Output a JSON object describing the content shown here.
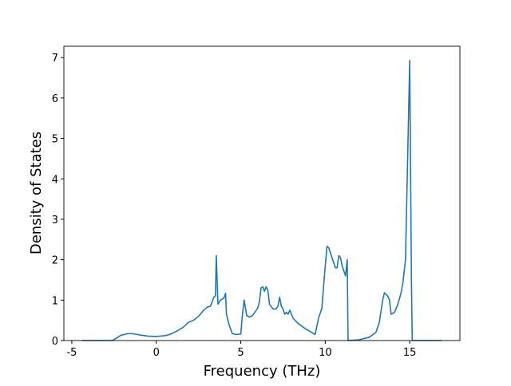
{
  "chart_data": {
    "type": "line",
    "x_label": "Frequency (THz)",
    "y_label": "Density of States",
    "x": [
      -4.4,
      -2.6,
      -2.4,
      -2.1,
      -1.7,
      -1.4,
      -1.0,
      -0.5,
      0,
      0.5,
      0.8,
      1.2,
      1.6,
      1.9,
      2.2,
      2.5,
      2.8,
      3.0,
      3.2,
      3.3,
      3.4,
      3.5,
      3.55,
      3.65,
      3.8,
      4.0,
      4.1,
      4.15,
      4.3,
      4.5,
      4.7,
      5.0,
      5.1,
      5.2,
      5.35,
      5.5,
      5.7,
      6.0,
      6.1,
      6.2,
      6.3,
      6.4,
      6.5,
      6.6,
      6.7,
      6.9,
      7.1,
      7.2,
      7.3,
      7.4,
      7.5,
      7.6,
      7.7,
      7.8,
      7.9,
      8.1,
      8.4,
      8.8,
      9.2,
      9.4,
      9.6,
      9.8,
      9.95,
      10.1,
      10.2,
      10.4,
      10.6,
      10.7,
      10.8,
      10.9,
      11.0,
      11.2,
      11.3,
      11.35,
      12.0,
      12.6,
      13.0,
      13.2,
      13.4,
      13.5,
      13.7,
      13.8,
      13.9,
      14.1,
      14.3,
      14.5,
      14.6,
      14.75,
      15.0,
      15.1,
      15.15,
      16.9
    ],
    "series": [
      {
        "color": "#1f77b4",
        "values": [
          0,
          0,
          0.05,
          0.13,
          0.17,
          0.17,
          0.14,
          0.11,
          0.1,
          0.12,
          0.15,
          0.23,
          0.33,
          0.45,
          0.5,
          0.6,
          0.75,
          0.82,
          0.85,
          0.95,
          1.07,
          1.1,
          2.1,
          0.9,
          1.0,
          1.05,
          1.17,
          0.65,
          0.4,
          0.17,
          0.15,
          0.16,
          0.65,
          1.0,
          0.62,
          0.58,
          0.62,
          0.8,
          0.95,
          1.3,
          1.33,
          1.22,
          1.33,
          1.25,
          0.9,
          0.78,
          0.78,
          0.85,
          1.07,
          0.85,
          0.78,
          0.65,
          0.7,
          0.65,
          0.75,
          0.55,
          0.42,
          0.3,
          0.2,
          0.15,
          0.55,
          0.8,
          1.6,
          2.33,
          2.3,
          2.05,
          1.8,
          1.8,
          2.1,
          2.05,
          1.85,
          1.6,
          2.0,
          0,
          0.02,
          0.08,
          0.2,
          0.45,
          1.0,
          1.18,
          1.1,
          1.0,
          0.65,
          0.7,
          0.9,
          1.2,
          1.45,
          2.0,
          6.93,
          1.5,
          0,
          0
        ]
      }
    ],
    "xlim": [
      -5.47,
      17.97
    ],
    "ylim": [
      0,
      7.28
    ],
    "xticks": [
      -5,
      0,
      5,
      10,
      15
    ],
    "yticks": [
      0,
      1,
      2,
      3,
      4,
      5,
      6,
      7
    ],
    "grid": false
  }
}
